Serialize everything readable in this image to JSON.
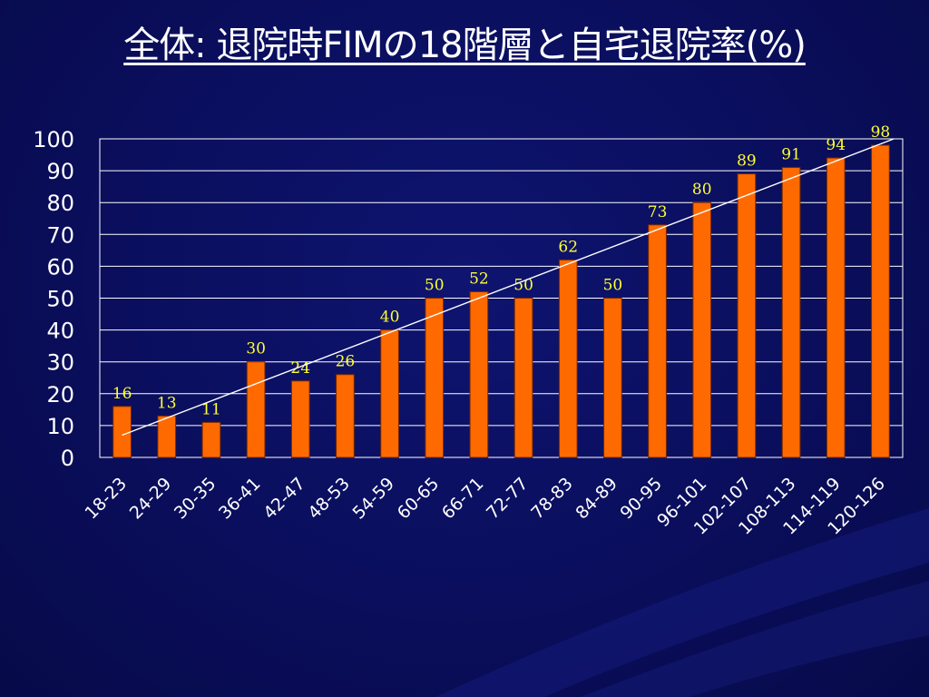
{
  "slide": {
    "title": "全体: 退院時FIMの18階層と自宅退院率(%)"
  },
  "colors": {
    "background": "#0b0f5a",
    "bar": "#ff6a00",
    "bar_edge": "#7a2a00",
    "grid": "#ffffff",
    "data_label": "#ffff33",
    "axis_text": "#ffffff",
    "trendline": "#ffffff"
  },
  "chart_data": {
    "type": "bar",
    "title": "全体: 退院時FIMの18階層と自宅退院率(%)",
    "xlabel": "",
    "ylabel": "",
    "ylim": [
      0,
      100
    ],
    "yticks": [
      0,
      10,
      20,
      30,
      40,
      50,
      60,
      70,
      80,
      90,
      100
    ],
    "grid": true,
    "legend": "none",
    "trendline": "linear",
    "categories": [
      "18-23",
      "24-29",
      "30-35",
      "36-41",
      "42-47",
      "48-53",
      "54-59",
      "60-65",
      "66-71",
      "72-77",
      "78-83",
      "84-89",
      "90-95",
      "96-101",
      "102-107",
      "108-113",
      "114-119",
      "120-126"
    ],
    "values": [
      16,
      13,
      11,
      30,
      24,
      26,
      40,
      50,
      52,
      50,
      62,
      50,
      73,
      80,
      89,
      91,
      94,
      98
    ],
    "data_labels": [
      "16",
      "13",
      "11",
      "30",
      "24",
      "26",
      "40",
      "50",
      "52",
      "50",
      "62",
      "50",
      "73",
      "80",
      "89",
      "91",
      "94",
      "98"
    ]
  }
}
